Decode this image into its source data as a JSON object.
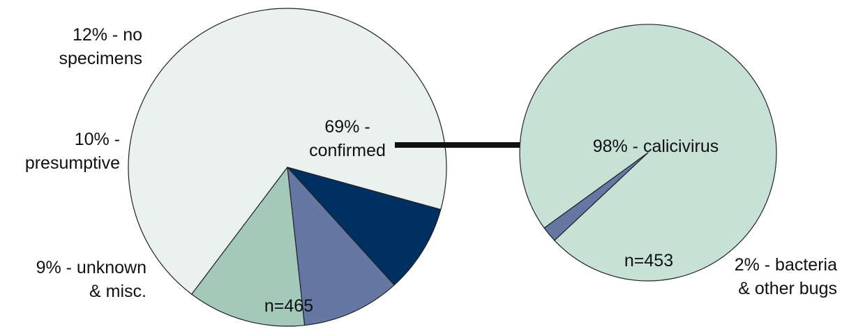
{
  "chart_data": [
    {
      "type": "pie",
      "n_label": "n=465",
      "slices": [
        {
          "lines": [
            "69% -",
            "confirmed"
          ],
          "value": 69,
          "color": "#e9f2ef"
        },
        {
          "lines": [
            "9% - unknown",
            "& misc."
          ],
          "value": 9,
          "color": "#002f61"
        },
        {
          "lines": [
            "10% -",
            "presumptive"
          ],
          "value": 10,
          "color": "#6578a3"
        },
        {
          "lines": [
            "12% - no",
            "specimens"
          ],
          "value": 12,
          "color": "#a2c9b9"
        }
      ]
    },
    {
      "type": "pie",
      "n_label": "n=453",
      "slices": [
        {
          "lines": [
            "98% - calicivirus"
          ],
          "value": 98,
          "color": "#c7e1d7"
        },
        {
          "lines": [
            "2% - bacteria",
            "& other bugs"
          ],
          "value": 2,
          "color": "#6578a3"
        }
      ]
    }
  ],
  "colors": {
    "outline": "#222222",
    "arrow": "#111111"
  }
}
